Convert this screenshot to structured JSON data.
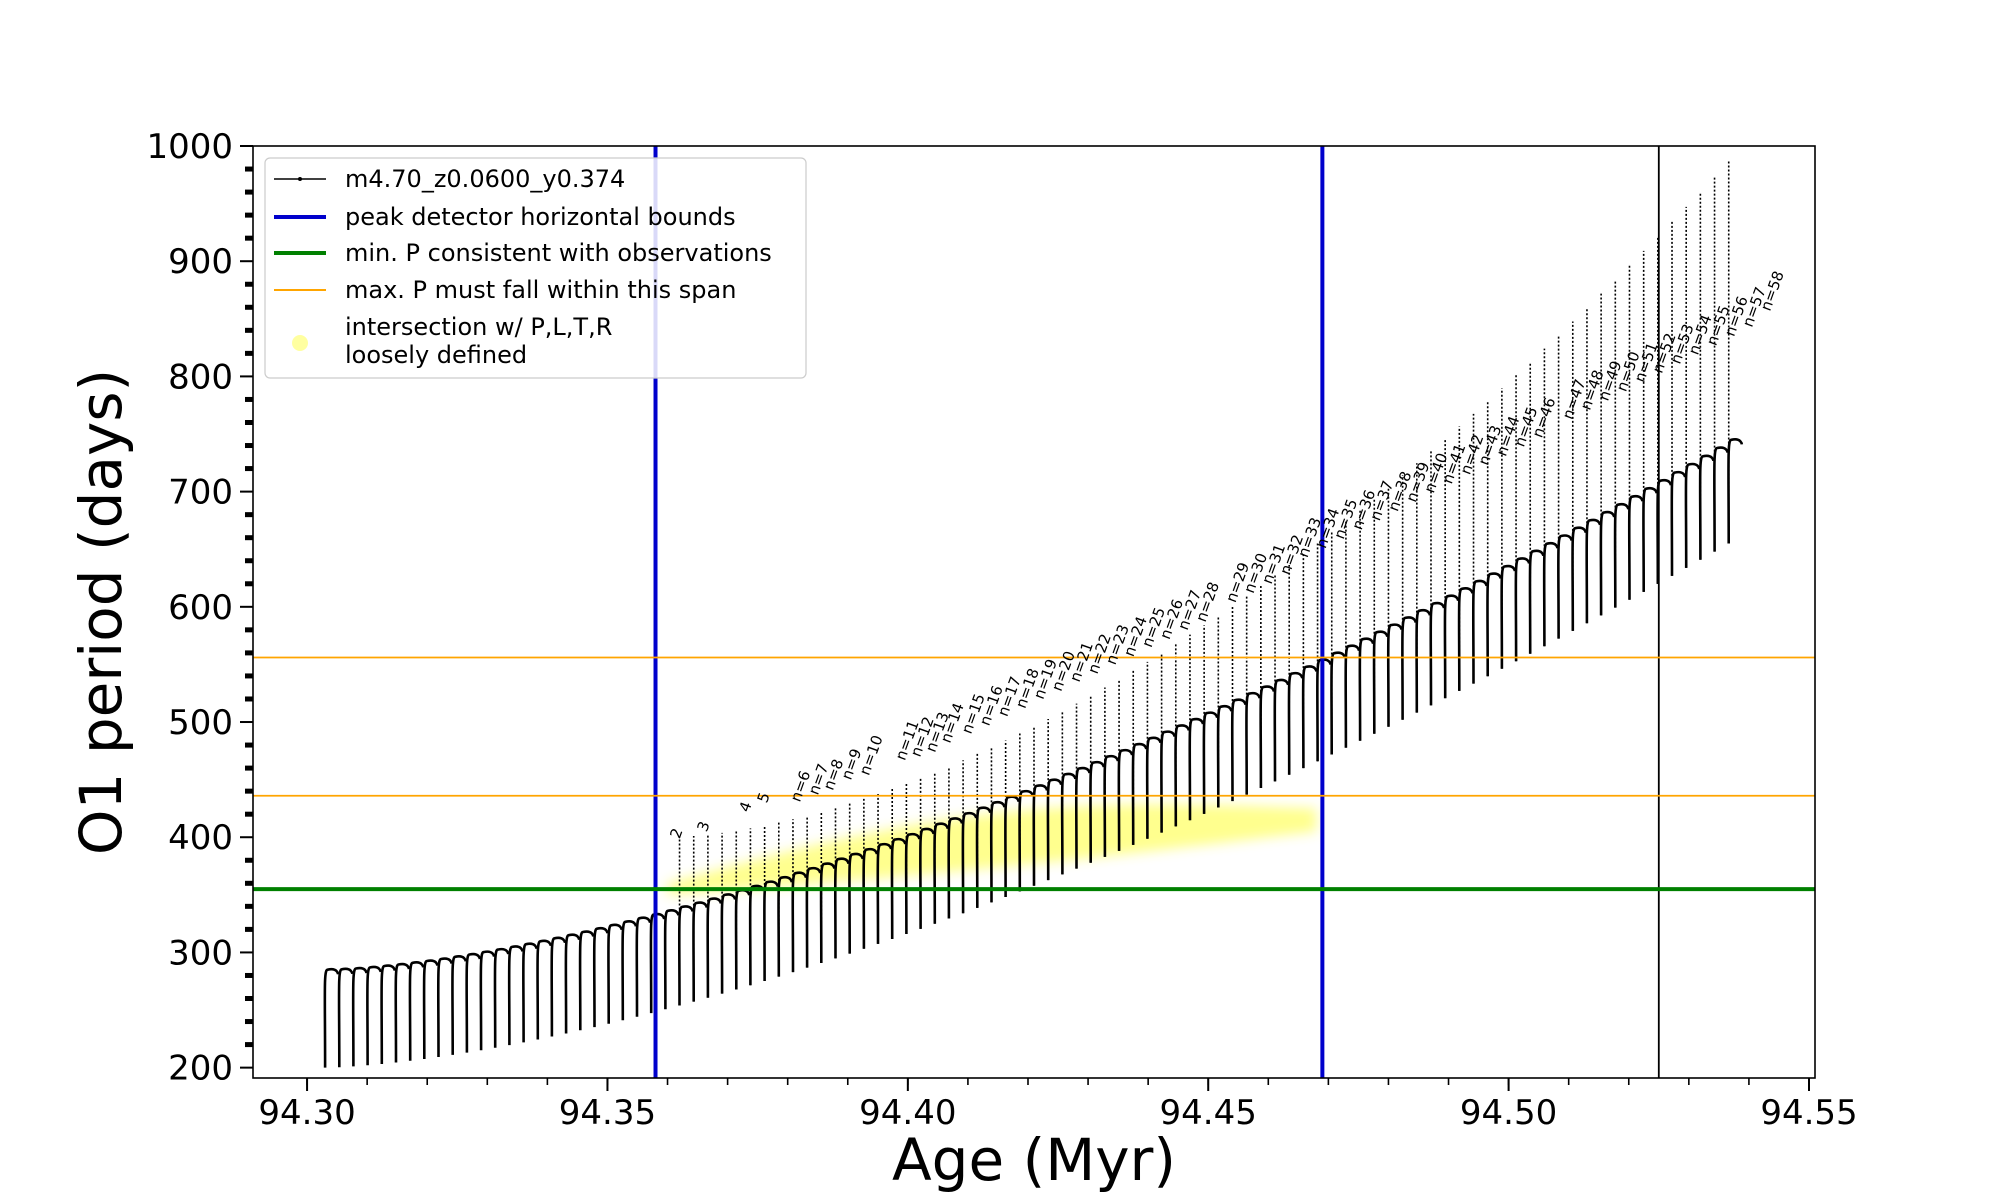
{
  "chart_data": {
    "type": "line",
    "title": "",
    "xlabel": "Age (Myr)",
    "ylabel": "O1 period (days)",
    "xlim": [
      94.291,
      94.551
    ],
    "ylim": [
      191,
      1000
    ],
    "xticks": [
      94.3,
      94.35,
      94.4,
      94.45,
      94.5,
      94.55
    ],
    "xtick_labels": [
      "94.30",
      "94.35",
      "94.40",
      "94.45",
      "94.50",
      "94.55"
    ],
    "yticks": [
      200,
      300,
      400,
      500,
      600,
      700,
      800,
      900,
      1000
    ],
    "ytick_labels": [
      "200",
      "300",
      "400",
      "500",
      "600",
      "700",
      "800",
      "900",
      "1000"
    ],
    "grid": false,
    "legend": {
      "placement": "top-left",
      "entries": [
        {
          "label": "m4.70_z0.0600_y0.374",
          "style": "line-with-dots",
          "color": "#000000"
        },
        {
          "label": "peak detector horizontal bounds",
          "style": "line",
          "color": "#0000cc"
        },
        {
          "label": "min. P consistent with observations",
          "style": "line",
          "color": "#008000"
        },
        {
          "label": "max. P must fall within this span",
          "style": "line",
          "color": "#ffa500"
        },
        {
          "label": "intersection w/ P,L,T,R",
          "label2": "loosely defined",
          "style": "marker",
          "color": "#ffff66"
        }
      ]
    },
    "series": [
      {
        "name": "m4.70_z0.0600_y0.374",
        "kind": "thermal-pulse sawtooth",
        "color": "#000000",
        "age_start": 94.303,
        "age_end": 94.539,
        "n_pulses": 100,
        "peak_period_start": 285,
        "peak_period_end": 745,
        "trough_period_start": 200,
        "trough_period_end": 655,
        "spike_period_start": 400,
        "spike_period_end": 1000,
        "spike_onset_age": 94.36
      },
      {
        "name": "intersection w/ P,L,T,R",
        "kind": "highlight band",
        "color": "#ffff33",
        "age_range": [
          94.36,
          94.468
        ],
        "period_low_range": [
          350,
          405
        ],
        "period_high_range": [
          360,
          425
        ]
      }
    ],
    "vlines": [
      {
        "x": 94.358,
        "color": "#0000cc"
      },
      {
        "x": 94.469,
        "color": "#0000cc"
      },
      {
        "x": 94.525,
        "color": "#000000"
      }
    ],
    "hlines": [
      {
        "y": 355,
        "color": "#008000"
      },
      {
        "y": 436,
        "color": "#ffa500"
      },
      {
        "y": 556,
        "color": "#ffa500"
      }
    ],
    "pulse_annotations": [
      {
        "label": "2",
        "x": 94.362,
        "y": 398
      },
      {
        "label": "3",
        "x": 94.3665,
        "y": 404
      },
      {
        "label": "4",
        "x": 94.3735,
        "y": 421
      },
      {
        "label": "5",
        "x": 94.3765,
        "y": 429
      },
      {
        "label": "n=6",
        "x": 94.382,
        "y": 430
      },
      {
        "label": "n=7",
        "x": 94.385,
        "y": 436
      },
      {
        "label": "n=8",
        "x": 94.3875,
        "y": 440
      },
      {
        "label": "n=9",
        "x": 94.3905,
        "y": 449
      },
      {
        "label": "n=10",
        "x": 94.3935,
        "y": 453
      },
      {
        "label": "n=11",
        "x": 94.3995,
        "y": 466
      },
      {
        "label": "n=12",
        "x": 94.402,
        "y": 469
      },
      {
        "label": "n=13",
        "x": 94.4045,
        "y": 473
      },
      {
        "label": "n=14",
        "x": 94.407,
        "y": 481
      },
      {
        "label": "n=15",
        "x": 94.4105,
        "y": 489
      },
      {
        "label": "n=16",
        "x": 94.4135,
        "y": 496
      },
      {
        "label": "n=17",
        "x": 94.4165,
        "y": 504
      },
      {
        "label": "n=18",
        "x": 94.4195,
        "y": 511
      },
      {
        "label": "n=19",
        "x": 94.4225,
        "y": 519
      },
      {
        "label": "n=20",
        "x": 94.4255,
        "y": 526
      },
      {
        "label": "n=21",
        "x": 94.4285,
        "y": 534
      },
      {
        "label": "n=22",
        "x": 94.4315,
        "y": 541
      },
      {
        "label": "n=23",
        "x": 94.4345,
        "y": 549
      },
      {
        "label": "n=24",
        "x": 94.4375,
        "y": 556
      },
      {
        "label": "n=25",
        "x": 94.4405,
        "y": 564
      },
      {
        "label": "n=26",
        "x": 94.4435,
        "y": 571
      },
      {
        "label": "n=27",
        "x": 94.4465,
        "y": 579
      },
      {
        "label": "n=28",
        "x": 94.4495,
        "y": 586
      },
      {
        "label": "n=29",
        "x": 94.4545,
        "y": 603
      },
      {
        "label": "n=30",
        "x": 94.4575,
        "y": 611
      },
      {
        "label": "n=31",
        "x": 94.4605,
        "y": 619
      },
      {
        "label": "n=32",
        "x": 94.4635,
        "y": 627
      },
      {
        "label": "n=33",
        "x": 94.4665,
        "y": 642
      },
      {
        "label": "n=34",
        "x": 94.4695,
        "y": 650
      },
      {
        "label": "n=35",
        "x": 94.4725,
        "y": 658
      },
      {
        "label": "n=36",
        "x": 94.4755,
        "y": 666
      },
      {
        "label": "n=37",
        "x": 94.4785,
        "y": 674
      },
      {
        "label": "n=38",
        "x": 94.4815,
        "y": 682
      },
      {
        "label": "n=39",
        "x": 94.4845,
        "y": 690
      },
      {
        "label": "n=40",
        "x": 94.4875,
        "y": 698
      },
      {
        "label": "n=41",
        "x": 94.4905,
        "y": 706
      },
      {
        "label": "n=42",
        "x": 94.4935,
        "y": 714
      },
      {
        "label": "n=43",
        "x": 94.4965,
        "y": 722
      },
      {
        "label": "n=44",
        "x": 94.4995,
        "y": 730
      },
      {
        "label": "n=45",
        "x": 94.5025,
        "y": 738
      },
      {
        "label": "n=46",
        "x": 94.5055,
        "y": 746
      },
      {
        "label": "n=47",
        "x": 94.5105,
        "y": 762
      },
      {
        "label": "n=48",
        "x": 94.5135,
        "y": 770
      },
      {
        "label": "n=49",
        "x": 94.5165,
        "y": 778
      },
      {
        "label": "n=50",
        "x": 94.5195,
        "y": 786
      },
      {
        "label": "n=51",
        "x": 94.5225,
        "y": 794
      },
      {
        "label": "n=52",
        "x": 94.5255,
        "y": 802
      },
      {
        "label": "n=53",
        "x": 94.5285,
        "y": 810
      },
      {
        "label": "n=54",
        "x": 94.5315,
        "y": 818
      },
      {
        "label": "n=55",
        "x": 94.5345,
        "y": 826
      },
      {
        "label": "n=56",
        "x": 94.5375,
        "y": 834
      },
      {
        "label": "n=57",
        "x": 94.5405,
        "y": 842
      },
      {
        "label": "n=58",
        "x": 94.5435,
        "y": 856
      }
    ]
  }
}
